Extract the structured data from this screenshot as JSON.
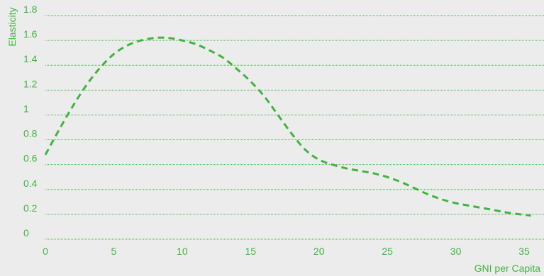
{
  "chart_data": {
    "type": "line",
    "title": "",
    "xlabel": "GNI per Capita",
    "ylabel": "Elasticity",
    "xlim": [
      0,
      35
    ],
    "ylim": [
      0,
      1.8
    ],
    "x_ticks": [
      0,
      5,
      10,
      15,
      20,
      25,
      30,
      35
    ],
    "y_ticks": [
      0,
      0.2,
      0.4,
      0.6,
      0.8,
      1,
      1.2,
      1.4,
      1.6,
      1.8
    ],
    "grid": "horizontal dotted",
    "legend": "none",
    "colors": {
      "background": "#ececec",
      "accent": "#3fb53f",
      "grid": "#3fb53f"
    },
    "series": [
      {
        "line_style": "dashed",
        "x": [
          0,
          1,
          2,
          3,
          4,
          5,
          6,
          7,
          8,
          9,
          10,
          11,
          12,
          13,
          14,
          15,
          16,
          17,
          18,
          19,
          20,
          21,
          22,
          23,
          24,
          25,
          26,
          27,
          28,
          29,
          30,
          31,
          32,
          33,
          34,
          35.5
        ],
        "y": [
          0.68,
          0.88,
          1.07,
          1.24,
          1.38,
          1.49,
          1.56,
          1.6,
          1.62,
          1.62,
          1.6,
          1.57,
          1.52,
          1.46,
          1.37,
          1.27,
          1.15,
          1.0,
          0.85,
          0.72,
          0.64,
          0.6,
          0.57,
          0.55,
          0.53,
          0.5,
          0.46,
          0.41,
          0.36,
          0.32,
          0.29,
          0.27,
          0.25,
          0.23,
          0.21,
          0.19
        ]
      }
    ]
  }
}
